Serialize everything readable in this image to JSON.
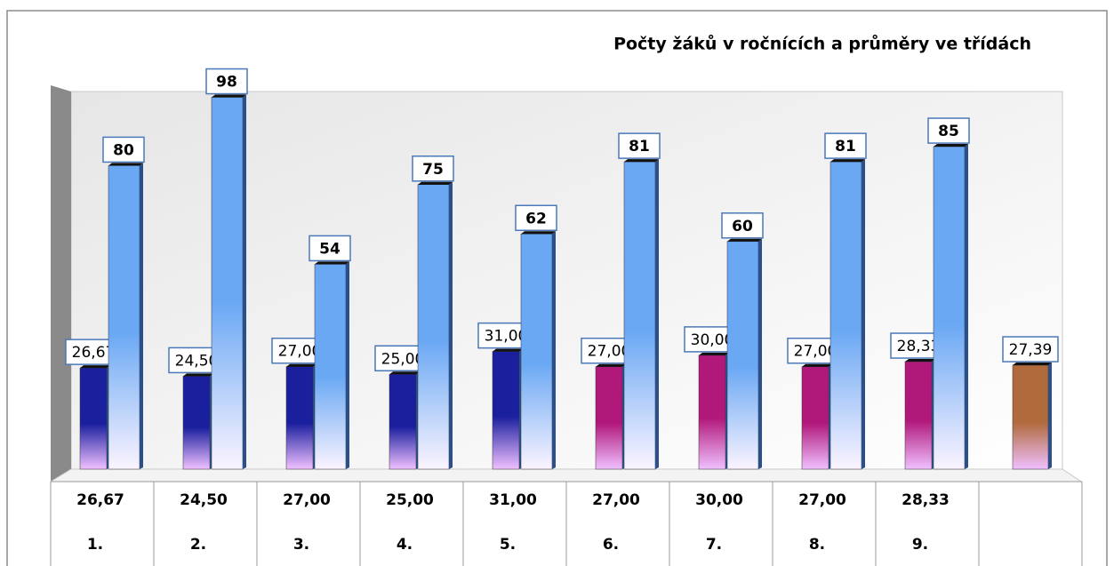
{
  "chart_data": {
    "type": "bar",
    "title": "Počty žáků v ročnících a průměry ve třídách",
    "categories": [
      "1.",
      "2.",
      "3.",
      "4.",
      "5.",
      "6.",
      "7.",
      "8.",
      "9.",
      null
    ],
    "series": [
      {
        "colors": [
          "#1a1f9e",
          "#1a1f9e",
          "#1a1f9e",
          "#1a1f9e",
          "#1a1f9e",
          "#b0187a",
          "#b0187a",
          "#b0187a",
          "#b0187a",
          "#b06a3c"
        ],
        "values": [
          26.67,
          24.5,
          27.0,
          25.0,
          31.0,
          27.0,
          30.0,
          27.0,
          28.33,
          27.39
        ],
        "value_labels": [
          "26,67",
          "24,50",
          "27,00",
          "25,00",
          "31,00",
          "27,00",
          "30,00",
          "27,00",
          "28,33",
          "27,39"
        ]
      },
      {
        "color": "#6aa8f4",
        "values": [
          80,
          98,
          54,
          75,
          62,
          81,
          60,
          81,
          85,
          null
        ]
      }
    ],
    "ylim": [
      0,
      100
    ]
  }
}
